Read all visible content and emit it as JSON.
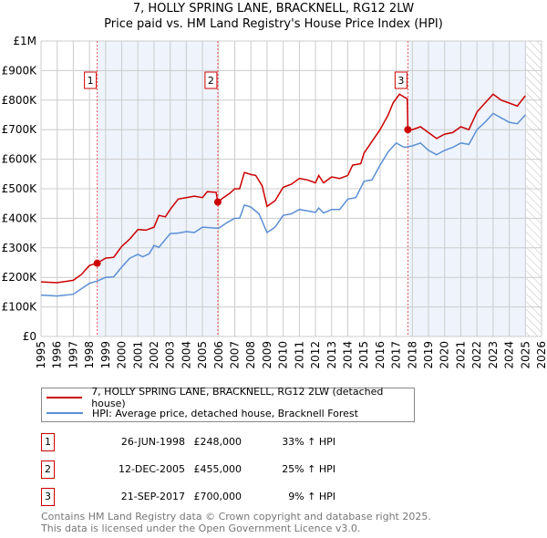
{
  "title": "7, HOLLY SPRING LANE, BRACKNELL, RG12 2LW",
  "subtitle": "Price paid vs. HM Land Registry's House Price Index (HPI)",
  "legend": {
    "red": "7, HOLLY SPRING LANE, BRACKNELL, RG12 2LW (detached house)",
    "blue": "HPI: Average price, detached house, Bracknell Forest"
  },
  "sales": [
    {
      "n": "1",
      "date": "26-JUN-1998",
      "price": "£248,000",
      "hpi": "33% ↑ HPI"
    },
    {
      "n": "2",
      "date": "12-DEC-2005",
      "price": "£455,000",
      "hpi": "25% ↑ HPI"
    },
    {
      "n": "3",
      "date": "21-SEP-2017",
      "price": "£700,000",
      "hpi": "9% ↑ HPI"
    }
  ],
  "footer": [
    "Contains HM Land Registry data © Crown copyright and database right 2025.",
    "This data is licensed under the Open Government Licence v3.0."
  ],
  "colors": {
    "red": "#cc0000",
    "blue": "#5b8fd4",
    "shade": "#eef3fc"
  },
  "chart_data": {
    "type": "line",
    "xlim": [
      1995,
      2026
    ],
    "ylim": [
      0,
      1000000
    ],
    "yticks": [
      {
        "v": 0,
        "l": "£0"
      },
      {
        "v": 100000,
        "l": "£100K"
      },
      {
        "v": 200000,
        "l": "£200K"
      },
      {
        "v": 300000,
        "l": "£300K"
      },
      {
        "v": 400000,
        "l": "£400K"
      },
      {
        "v": 500000,
        "l": "£500K"
      },
      {
        "v": 600000,
        "l": "£600K"
      },
      {
        "v": 700000,
        "l": "£700K"
      },
      {
        "v": 800000,
        "l": "£800K"
      },
      {
        "v": 900000,
        "l": "£900K"
      },
      {
        "v": 1000000,
        "l": "£1M"
      }
    ],
    "xticks": [
      "1995",
      "1996",
      "1997",
      "1998",
      "1999",
      "2000",
      "2001",
      "2002",
      "2003",
      "2004",
      "2005",
      "2006",
      "2007",
      "2008",
      "2009",
      "2010",
      "2011",
      "2012",
      "2013",
      "2014",
      "2015",
      "2016",
      "2017",
      "2018",
      "2019",
      "2020",
      "2021",
      "2022",
      "2023",
      "2024",
      "2025",
      "2026"
    ],
    "shaded": [
      [
        1998.48,
        2005.95
      ],
      [
        2017.72,
        2025.0
      ]
    ],
    "hatched_from": 2025.05,
    "sale_points": [
      {
        "x": 1998.48,
        "y": 248000,
        "label": "1"
      },
      {
        "x": 2005.95,
        "y": 455000,
        "label": "2"
      },
      {
        "x": 2017.72,
        "y": 700000,
        "label": "3"
      }
    ],
    "series": [
      {
        "name": "7, HOLLY SPRING LANE, BRACKNELL, RG12 2LW (detached house)",
        "color": "#cc0000",
        "x": [
          1995,
          1996,
          1997,
          1997.5,
          1998,
          1998.48,
          1999,
          1999.5,
          2000,
          2000.5,
          2001,
          2001.5,
          2002,
          2002.3,
          2002.7,
          2003,
          2003.5,
          2004,
          2004.5,
          2005,
          2005.3,
          2005.85,
          2005.95,
          2006.3,
          2006.7,
          2007,
          2007.3,
          2007.6,
          2008,
          2008.3,
          2008.7,
          2009,
          2009.5,
          2010,
          2010.5,
          2011,
          2011.5,
          2012,
          2012.2,
          2012.5,
          2013,
          2013.5,
          2014,
          2014.3,
          2014.8,
          2015,
          2015.5,
          2016,
          2016.5,
          2016.8,
          2017.2,
          2017.5,
          2017.68,
          2017.72,
          2018,
          2018.5,
          2019,
          2019.5,
          2020,
          2020.5,
          2021,
          2021.5,
          2022,
          2022.5,
          2023,
          2023.5,
          2024,
          2024.5,
          2025
        ],
        "y": [
          185000,
          182000,
          190000,
          210000,
          240000,
          248000,
          265000,
          268000,
          305000,
          330000,
          362000,
          360000,
          370000,
          410000,
          405000,
          430000,
          465000,
          470000,
          475000,
          470000,
          490000,
          488000,
          455000,
          470000,
          485000,
          500000,
          500000,
          555000,
          548000,
          545000,
          510000,
          440000,
          460000,
          505000,
          515000,
          535000,
          530000,
          520000,
          545000,
          520000,
          540000,
          535000,
          545000,
          580000,
          585000,
          620000,
          660000,
          700000,
          750000,
          790000,
          820000,
          810000,
          805000,
          700000,
          700000,
          710000,
          690000,
          670000,
          685000,
          690000,
          710000,
          700000,
          760000,
          790000,
          820000,
          800000,
          790000,
          780000,
          815000
        ]
      },
      {
        "name": "HPI: Average price, detached house, Bracknell Forest",
        "color": "#5b8fd4",
        "x": [
          1995,
          1996,
          1997,
          1998,
          1998.5,
          1999,
          1999.5,
          2000,
          2000.5,
          2001,
          2001.3,
          2001.7,
          2002,
          2002.3,
          2003,
          2003.5,
          2004,
          2004.5,
          2005,
          2005.5,
          2006,
          2006.5,
          2007,
          2007.3,
          2007.6,
          2008,
          2008.5,
          2009,
          2009.5,
          2010,
          2010.5,
          2011,
          2011.5,
          2012,
          2012.2,
          2012.5,
          2013,
          2013.5,
          2014,
          2014.5,
          2015,
          2015.5,
          2016,
          2016.5,
          2017,
          2017.5,
          2018,
          2018.5,
          2019,
          2019.5,
          2020,
          2020.5,
          2021,
          2021.5,
          2022,
          2022.5,
          2023,
          2023.5,
          2024,
          2024.5,
          2025
        ],
        "y": [
          140000,
          137000,
          143000,
          180000,
          188000,
          200000,
          202000,
          235000,
          265000,
          278000,
          270000,
          280000,
          308000,
          302000,
          348000,
          350000,
          355000,
          352000,
          370000,
          368000,
          366000,
          385000,
          400000,
          400000,
          445000,
          438000,
          415000,
          352000,
          370000,
          410000,
          415000,
          430000,
          425000,
          420000,
          435000,
          418000,
          430000,
          430000,
          465000,
          470000,
          525000,
          530000,
          580000,
          625000,
          655000,
          640000,
          645000,
          655000,
          630000,
          615000,
          630000,
          640000,
          655000,
          650000,
          700000,
          725000,
          755000,
          740000,
          725000,
          720000,
          750000
        ]
      }
    ]
  }
}
